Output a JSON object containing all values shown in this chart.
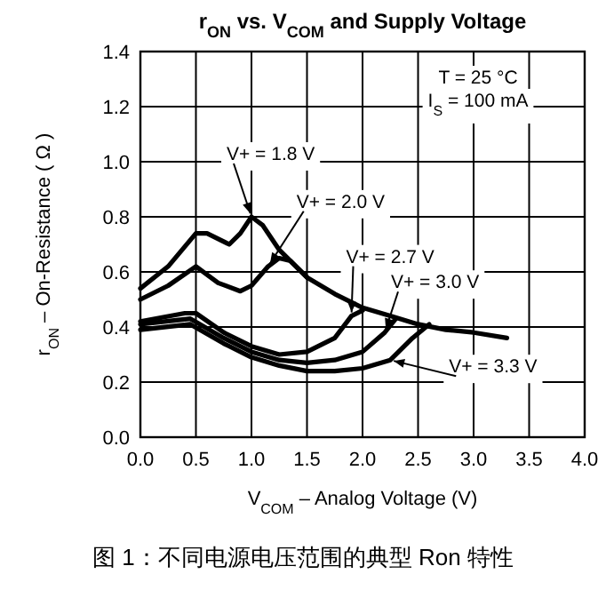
{
  "chart_data": {
    "type": "line",
    "title": "r$_{ON}$ vs. V$_{COM}$ and Supply Voltage",
    "xlabel": "V$_{COM}$ – Analog Voltage (V)",
    "ylabel": "r$_{ON}$ – On-Resistance ( Ω )",
    "xlim": [
      0,
      4
    ],
    "ylim": [
      0,
      1.4
    ],
    "xticks": [
      {
        "value": 0,
        "label": "0.0"
      },
      0.5,
      {
        "value": 1,
        "label": "1.0"
      },
      1.5,
      {
        "value": 2,
        "label": "2.0"
      },
      2.5,
      {
        "value": 3,
        "label": "3.0"
      },
      3.5,
      {
        "value": 4,
        "label": "4.0"
      }
    ],
    "yticks": [
      {
        "value": 0,
        "label": "0.0"
      },
      0.2,
      0.4,
      0.6,
      0.8,
      {
        "value": 1,
        "label": "1.0"
      },
      1.2,
      1.4
    ],
    "grid": true,
    "series": [
      {
        "color": "#000000",
        "x": [
          0,
          0.25,
          0.5,
          0.6,
          0.8,
          0.9,
          1.0,
          1.1,
          1.25,
          1.5,
          1.75,
          2.0,
          2.25,
          2.5,
          2.75,
          3.0,
          3.3
        ],
        "values": [
          0.54,
          0.62,
          0.74,
          0.74,
          0.7,
          0.74,
          0.8,
          0.77,
          0.68,
          0.58,
          0.52,
          0.47,
          0.44,
          0.41,
          0.39,
          0.38,
          0.36
        ]
      },
      {
        "color": "#000000",
        "x": [
          0,
          0.25,
          0.5,
          0.7,
          0.9,
          1.0,
          1.15,
          1.25,
          1.35,
          1.5
        ],
        "values": [
          0.5,
          0.55,
          0.62,
          0.56,
          0.53,
          0.55,
          0.62,
          0.65,
          0.64,
          0.58
        ]
      },
      {
        "color": "#000000",
        "x": [
          0,
          0.4,
          0.5,
          0.75,
          1.0,
          1.25,
          1.5,
          1.75,
          1.9,
          2.0
        ],
        "values": [
          0.42,
          0.45,
          0.45,
          0.38,
          0.33,
          0.3,
          0.31,
          0.36,
          0.44,
          0.46
        ]
      },
      {
        "color": "#000000",
        "x": [
          0,
          0.45,
          0.75,
          1.0,
          1.25,
          1.5,
          1.75,
          2.0,
          2.2,
          2.3
        ],
        "values": [
          0.41,
          0.43,
          0.36,
          0.31,
          0.28,
          0.27,
          0.28,
          0.31,
          0.38,
          0.43
        ]
      },
      {
        "color": "#000000",
        "x": [
          0,
          0.45,
          0.75,
          1.0,
          1.25,
          1.5,
          1.75,
          2.0,
          2.25,
          2.45,
          2.6
        ],
        "values": [
          0.39,
          0.41,
          0.34,
          0.29,
          0.26,
          0.24,
          0.24,
          0.25,
          0.28,
          0.36,
          0.41
        ]
      }
    ],
    "annotations": [
      {
        "text": "V+ = 1.8 V",
        "x": 1.0,
        "y": 0.8
      },
      {
        "text": "V+ = 2.0 V",
        "x": 1.15,
        "y": 0.62
      },
      {
        "text": "V+ = 2.7 V",
        "x": 1.9,
        "y": 0.44
      },
      {
        "text": "V+ = 3.0 V",
        "x": 2.2,
        "y": 0.38
      },
      {
        "text": "V+ = 3.3 V",
        "x": 2.25,
        "y": 0.28
      },
      "T = 25 °C",
      "I$_{S}$ = 100 mA",
      "图 1：不同电源电压范围的典型 Ron 特性"
    ]
  }
}
